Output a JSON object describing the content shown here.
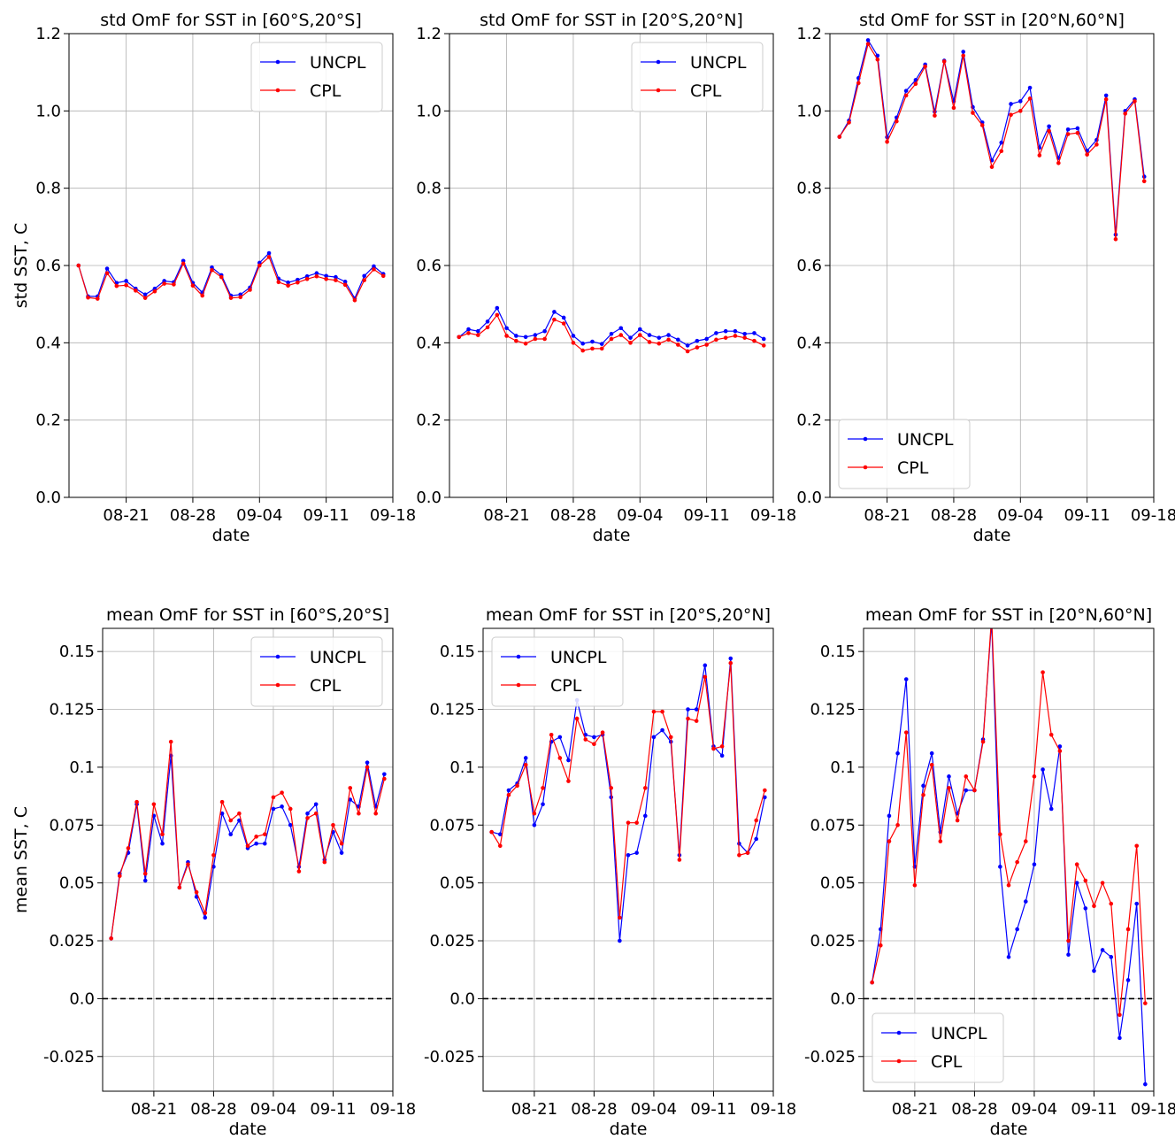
{
  "legend_labels": [
    "UNCPL",
    "CPL"
  ],
  "colors": {
    "UNCPL": "#0000ff",
    "CPL": "#ff0000"
  },
  "chart_data": [
    {
      "type": "line",
      "title": "std OmF for SST in [60°S,20°S]",
      "xlabel": "date",
      "ylabel": "std SST, C",
      "x_range": [
        "08-15",
        "09-18"
      ],
      "ylim": [
        0,
        1.2
      ],
      "yticks": [
        0.0,
        0.2,
        0.4,
        0.6,
        0.8,
        1.0,
        1.2
      ],
      "ytick_labels": [
        "0.0",
        "0.2",
        "0.4",
        "0.6",
        "0.8",
        "1.0",
        "1.2"
      ],
      "xticks": [
        "08-21",
        "08-28",
        "09-04",
        "09-11",
        "09-18"
      ],
      "legend_position": "top-right",
      "grid": true,
      "zero_line": false,
      "x": [
        "08-16",
        "08-17",
        "08-18",
        "08-19",
        "08-20",
        "08-21",
        "08-22",
        "08-23",
        "08-24",
        "08-25",
        "08-26",
        "08-27",
        "08-28",
        "08-29",
        "08-30",
        "08-31",
        "09-01",
        "09-02",
        "09-03",
        "09-04",
        "09-05",
        "09-06",
        "09-07",
        "09-08",
        "09-09",
        "09-10",
        "09-11",
        "09-12",
        "09-13",
        "09-14",
        "09-15",
        "09-16",
        "09-17"
      ],
      "series": [
        {
          "name": "UNCPL",
          "values": [
            0.6,
            0.52,
            0.52,
            0.592,
            0.555,
            0.56,
            0.54,
            0.525,
            0.54,
            0.56,
            0.557,
            0.612,
            0.555,
            0.53,
            0.595,
            0.575,
            0.522,
            0.525,
            0.543,
            0.607,
            0.632,
            0.566,
            0.556,
            0.563,
            0.572,
            0.58,
            0.573,
            0.57,
            0.558,
            0.515,
            0.573,
            0.598,
            0.578
          ]
        },
        {
          "name": "CPL",
          "values": [
            0.6,
            0.517,
            0.514,
            0.58,
            0.547,
            0.549,
            0.535,
            0.516,
            0.533,
            0.553,
            0.551,
            0.605,
            0.548,
            0.522,
            0.588,
            0.57,
            0.516,
            0.518,
            0.537,
            0.6,
            0.622,
            0.557,
            0.548,
            0.556,
            0.565,
            0.572,
            0.565,
            0.562,
            0.55,
            0.51,
            0.562,
            0.59,
            0.573
          ]
        }
      ]
    },
    {
      "type": "line",
      "title": "std OmF for SST in [20°S,20°N]",
      "xlabel": "date",
      "ylabel": "",
      "x_range": [
        "08-15",
        "09-18"
      ],
      "ylim": [
        0,
        1.2
      ],
      "yticks": [
        0.0,
        0.2,
        0.4,
        0.6,
        0.8,
        1.0,
        1.2
      ],
      "ytick_labels": [
        "0.0",
        "0.2",
        "0.4",
        "0.6",
        "0.8",
        "1.0",
        "1.2"
      ],
      "xticks": [
        "08-21",
        "08-28",
        "09-04",
        "09-11",
        "09-18"
      ],
      "legend_position": "top-right",
      "grid": true,
      "zero_line": false,
      "x": [
        "08-16",
        "08-17",
        "08-18",
        "08-19",
        "08-20",
        "08-21",
        "08-22",
        "08-23",
        "08-24",
        "08-25",
        "08-26",
        "08-27",
        "08-28",
        "08-29",
        "08-30",
        "08-31",
        "09-01",
        "09-02",
        "09-03",
        "09-04",
        "09-05",
        "09-06",
        "09-07",
        "09-08",
        "09-09",
        "09-10",
        "09-11",
        "09-12",
        "09-13",
        "09-14",
        "09-15",
        "09-16",
        "09-17"
      ],
      "series": [
        {
          "name": "UNCPL",
          "values": [
            0.415,
            0.435,
            0.43,
            0.455,
            0.49,
            0.438,
            0.418,
            0.415,
            0.42,
            0.43,
            0.48,
            0.465,
            0.418,
            0.398,
            0.403,
            0.397,
            0.423,
            0.438,
            0.413,
            0.435,
            0.42,
            0.413,
            0.42,
            0.408,
            0.393,
            0.405,
            0.41,
            0.425,
            0.43,
            0.43,
            0.423,
            0.425,
            0.41
          ]
        },
        {
          "name": "CPL",
          "values": [
            0.415,
            0.425,
            0.42,
            0.44,
            0.472,
            0.418,
            0.405,
            0.398,
            0.41,
            0.41,
            0.46,
            0.45,
            0.4,
            0.38,
            0.385,
            0.385,
            0.41,
            0.42,
            0.4,
            0.42,
            0.402,
            0.398,
            0.408,
            0.395,
            0.378,
            0.388,
            0.395,
            0.408,
            0.413,
            0.418,
            0.413,
            0.405,
            0.393
          ]
        }
      ]
    },
    {
      "type": "line",
      "title": "std OmF for SST in [20°N,60°N]",
      "xlabel": "date",
      "ylabel": "",
      "x_range": [
        "08-15",
        "09-18"
      ],
      "ylim": [
        0,
        1.2
      ],
      "yticks": [
        0.0,
        0.2,
        0.4,
        0.6,
        0.8,
        1.0,
        1.2
      ],
      "ytick_labels": [
        "0.0",
        "0.2",
        "0.4",
        "0.6",
        "0.8",
        "1.0",
        "1.2"
      ],
      "xticks": [
        "08-21",
        "08-28",
        "09-04",
        "09-11",
        "09-18"
      ],
      "legend_position": "bottom-left",
      "grid": true,
      "zero_line": false,
      "x": [
        "08-16",
        "08-17",
        "08-18",
        "08-19",
        "08-20",
        "08-21",
        "08-22",
        "08-23",
        "08-24",
        "08-25",
        "08-26",
        "08-27",
        "08-28",
        "08-29",
        "08-30",
        "08-31",
        "09-01",
        "09-02",
        "09-03",
        "09-04",
        "09-05",
        "09-06",
        "09-07",
        "09-08",
        "09-09",
        "09-10",
        "09-11",
        "09-12",
        "09-13",
        "09-14",
        "09-15",
        "09-16",
        "09-17"
      ],
      "series": [
        {
          "name": "UNCPL",
          "values": [
            0.933,
            0.975,
            1.085,
            1.183,
            1.143,
            0.932,
            0.983,
            1.052,
            1.08,
            1.12,
            0.998,
            1.13,
            1.025,
            1.153,
            1.01,
            0.97,
            0.872,
            0.918,
            1.018,
            1.025,
            1.06,
            0.905,
            0.96,
            0.878,
            0.952,
            0.955,
            0.897,
            0.925,
            1.04,
            0.68,
            1.0,
            1.03,
            0.83
          ]
        },
        {
          "name": "CPL",
          "values": [
            0.933,
            0.97,
            1.072,
            1.173,
            1.133,
            0.92,
            0.973,
            1.04,
            1.07,
            1.115,
            0.988,
            1.128,
            1.008,
            1.143,
            0.995,
            0.963,
            0.855,
            0.896,
            0.99,
            1.0,
            1.032,
            0.885,
            0.948,
            0.865,
            0.94,
            0.943,
            0.887,
            0.913,
            1.03,
            0.668,
            0.993,
            1.025,
            0.818
          ]
        }
      ]
    },
    {
      "type": "line",
      "title": "mean OmF for SST in [60°S,20°S]",
      "xlabel": "date",
      "ylabel": "mean SST, C",
      "x_range": [
        "08-15",
        "09-18"
      ],
      "ylim": [
        -0.04,
        0.16
      ],
      "yticks": [
        -0.025,
        0.0,
        0.025,
        0.05,
        0.075,
        0.1,
        0.125,
        0.15
      ],
      "ytick_labels": [
        "-0.025",
        "0.0",
        "0.025",
        "0.05",
        "0.075",
        "0.1",
        "0.125",
        "0.15"
      ],
      "xticks": [
        "08-21",
        "08-28",
        "09-04",
        "09-11",
        "09-18"
      ],
      "legend_position": "top-right",
      "grid": true,
      "zero_line": true,
      "x": [
        "08-16",
        "08-17",
        "08-18",
        "08-19",
        "08-20",
        "08-21",
        "08-22",
        "08-23",
        "08-24",
        "08-25",
        "08-26",
        "08-27",
        "08-28",
        "08-29",
        "08-30",
        "08-31",
        "09-01",
        "09-02",
        "09-03",
        "09-04",
        "09-05",
        "09-06",
        "09-07",
        "09-08",
        "09-09",
        "09-10",
        "09-11",
        "09-12",
        "09-13",
        "09-14",
        "09-15",
        "09-16",
        "09-17"
      ],
      "series": [
        {
          "name": "UNCPL",
          "values": [
            0.026,
            0.054,
            0.063,
            0.084,
            0.051,
            0.079,
            0.067,
            0.105,
            0.048,
            0.059,
            0.044,
            0.035,
            0.057,
            0.08,
            0.071,
            0.077,
            0.065,
            0.067,
            0.067,
            0.082,
            0.083,
            0.075,
            0.057,
            0.08,
            0.084,
            0.06,
            0.072,
            0.063,
            0.086,
            0.083,
            0.102,
            0.083,
            0.097
          ]
        },
        {
          "name": "CPL",
          "values": [
            0.026,
            0.053,
            0.065,
            0.085,
            0.054,
            0.084,
            0.071,
            0.111,
            0.048,
            0.058,
            0.046,
            0.037,
            0.062,
            0.085,
            0.077,
            0.08,
            0.066,
            0.07,
            0.071,
            0.087,
            0.089,
            0.082,
            0.055,
            0.078,
            0.08,
            0.059,
            0.075,
            0.067,
            0.091,
            0.08,
            0.1,
            0.08,
            0.095
          ]
        }
      ]
    },
    {
      "type": "line",
      "title": "mean OmF for SST in [20°S,20°N]",
      "xlabel": "date",
      "ylabel": "",
      "x_range": [
        "08-15",
        "09-18"
      ],
      "ylim": [
        -0.04,
        0.16
      ],
      "yticks": [
        -0.025,
        0.0,
        0.025,
        0.05,
        0.075,
        0.1,
        0.125,
        0.15
      ],
      "ytick_labels": [
        "-0.025",
        "0.0",
        "0.025",
        "0.05",
        "0.075",
        "0.1",
        "0.125",
        "0.15"
      ],
      "xticks": [
        "08-21",
        "08-28",
        "09-04",
        "09-11",
        "09-18"
      ],
      "legend_position": "top-left",
      "grid": true,
      "zero_line": true,
      "x": [
        "08-16",
        "08-17",
        "08-18",
        "08-19",
        "08-20",
        "08-21",
        "08-22",
        "08-23",
        "08-24",
        "08-25",
        "08-26",
        "08-27",
        "08-28",
        "08-29",
        "08-30",
        "08-31",
        "09-01",
        "09-02",
        "09-03",
        "09-04",
        "09-05",
        "09-06",
        "09-07",
        "09-08",
        "09-09",
        "09-10",
        "09-11",
        "09-12",
        "09-13",
        "09-14",
        "09-15",
        "09-16",
        "09-17"
      ],
      "series": [
        {
          "name": "UNCPL",
          "values": [
            0.072,
            0.071,
            0.09,
            0.093,
            0.104,
            0.075,
            0.084,
            0.111,
            0.113,
            0.103,
            0.129,
            0.114,
            0.113,
            0.114,
            0.087,
            0.025,
            0.062,
            0.063,
            0.079,
            0.113,
            0.116,
            0.111,
            0.062,
            0.125,
            0.125,
            0.144,
            0.109,
            0.105,
            0.147,
            0.067,
            0.063,
            0.069,
            0.087
          ]
        },
        {
          "name": "CPL",
          "values": [
            0.072,
            0.066,
            0.088,
            0.092,
            0.101,
            0.08,
            0.091,
            0.114,
            0.104,
            0.094,
            0.121,
            0.112,
            0.11,
            0.115,
            0.091,
            0.035,
            0.076,
            0.076,
            0.091,
            0.124,
            0.124,
            0.113,
            0.06,
            0.121,
            0.12,
            0.139,
            0.108,
            0.109,
            0.145,
            0.062,
            0.063,
            0.077,
            0.09
          ]
        }
      ]
    },
    {
      "type": "line",
      "title": "mean OmF for SST in [20°N,60°N]",
      "xlabel": "date",
      "ylabel": "",
      "x_range": [
        "08-15",
        "09-18"
      ],
      "ylim": [
        -0.04,
        0.16
      ],
      "yticks": [
        -0.025,
        0.0,
        0.025,
        0.05,
        0.075,
        0.1,
        0.125,
        0.15
      ],
      "ytick_labels": [
        "-0.025",
        "0.0",
        "0.025",
        "0.05",
        "0.075",
        "0.1",
        "0.125",
        "0.15"
      ],
      "xticks": [
        "08-21",
        "08-28",
        "09-04",
        "09-11",
        "09-18"
      ],
      "legend_position": "bottom-left",
      "grid": true,
      "zero_line": true,
      "x": [
        "08-16",
        "08-17",
        "08-18",
        "08-19",
        "08-20",
        "08-21",
        "08-22",
        "08-23",
        "08-24",
        "08-25",
        "08-26",
        "08-27",
        "08-28",
        "08-29",
        "08-30",
        "08-31",
        "09-01",
        "09-02",
        "09-03",
        "09-04",
        "09-05",
        "09-06",
        "09-07",
        "09-08",
        "09-09",
        "09-10",
        "09-11",
        "09-12",
        "09-13",
        "09-14",
        "09-15",
        "09-16",
        "09-17"
      ],
      "series": [
        {
          "name": "UNCPL",
          "values": [
            0.007,
            0.03,
            0.079,
            0.106,
            0.138,
            0.057,
            0.092,
            0.106,
            0.072,
            0.096,
            0.08,
            0.09,
            0.09,
            0.112,
            0.163,
            0.057,
            0.018,
            0.03,
            0.042,
            0.058,
            0.099,
            0.082,
            0.109,
            0.019,
            0.05,
            0.039,
            0.012,
            0.021,
            0.018,
            -0.017,
            0.008,
            0.041,
            -0.037
          ]
        },
        {
          "name": "CPL",
          "values": [
            0.007,
            0.023,
            0.068,
            0.075,
            0.115,
            0.049,
            0.088,
            0.101,
            0.068,
            0.091,
            0.077,
            0.096,
            0.09,
            0.111,
            0.165,
            0.071,
            0.049,
            0.059,
            0.068,
            0.096,
            0.141,
            0.114,
            0.107,
            0.025,
            0.058,
            0.051,
            0.04,
            0.05,
            0.041,
            -0.007,
            0.03,
            0.066,
            -0.002
          ]
        }
      ]
    }
  ]
}
